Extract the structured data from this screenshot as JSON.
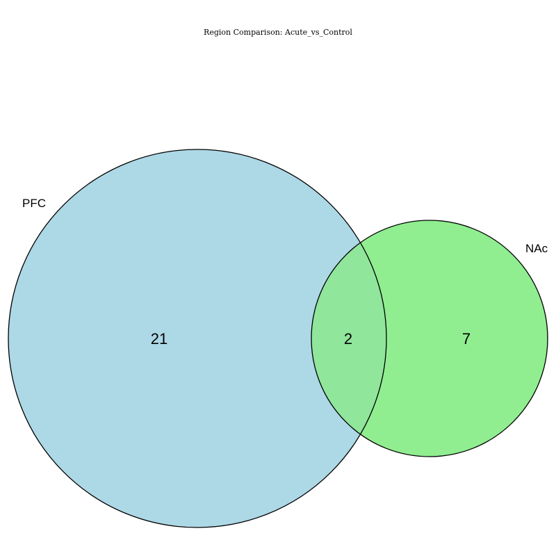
{
  "title": "Region Comparison: Acute_vs_Control",
  "sets": [
    {
      "label": "PFC",
      "only_count": "21",
      "color": "#add8e6"
    },
    {
      "label": "NAc",
      "only_count": "7",
      "color": "#90ee90"
    }
  ],
  "overlap_count": "2",
  "overlap_color": "#90e69b",
  "outline_color": "#000000"
}
